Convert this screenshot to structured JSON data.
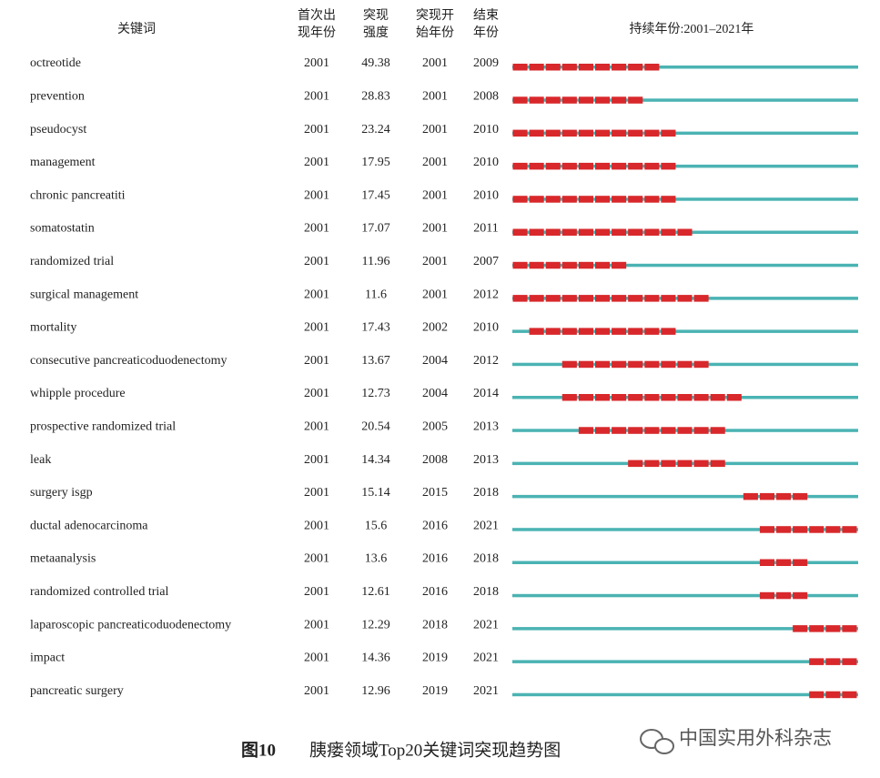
{
  "table": {
    "headers": [
      [
        "关键词"
      ],
      [
        "首次出",
        "现年份"
      ],
      [
        "突现",
        "强度"
      ],
      [
        "突现开",
        "始年份"
      ],
      [
        "结束",
        "年份"
      ],
      [
        "持续年份:2001–2021年"
      ]
    ],
    "rows": [
      [
        "octreotide",
        2001,
        49.38,
        2001,
        2009
      ],
      [
        "prevention",
        2001,
        28.83,
        2001,
        2008
      ],
      [
        "pseudocyst",
        2001,
        23.24,
        2001,
        2010
      ],
      [
        "management",
        2001,
        17.95,
        2001,
        2010
      ],
      [
        "chronic pancreatiti",
        2001,
        17.45,
        2001,
        2010
      ],
      [
        "somatostatin",
        2001,
        17.07,
        2001,
        2011
      ],
      [
        "randomized trial",
        2001,
        11.96,
        2001,
        2007
      ],
      [
        "surgical management",
        2001,
        11.6,
        2001,
        2012
      ],
      [
        "mortality",
        2001,
        17.43,
        2002,
        2010
      ],
      [
        "consecutive pancreaticoduodenectomy",
        2001,
        13.67,
        2004,
        2012
      ],
      [
        "whipple procedure",
        2001,
        12.73,
        2004,
        2014
      ],
      [
        "prospective randomized trial",
        2001,
        20.54,
        2005,
        2013
      ],
      [
        "leak",
        2001,
        14.34,
        2008,
        2013
      ],
      [
        "surgery isgp",
        2001,
        15.14,
        2015,
        2018
      ],
      [
        "ductal adenocarcinoma",
        2001,
        15.6,
        2016,
        2021
      ],
      [
        "metaanalysis",
        2001,
        13.6,
        2016,
        2018
      ],
      [
        "randomized controlled trial",
        2001,
        12.61,
        2016,
        2018
      ],
      [
        "laparoscopic pancreaticoduodenectomy",
        2001,
        12.29,
        2018,
        2021
      ],
      [
        "impact",
        2001,
        14.36,
        2019,
        2021
      ],
      [
        "pancreatic surgery",
        2001,
        12.96,
        2019,
        2021
      ]
    ]
  },
  "caption": {
    "label": "图10",
    "text": "胰瘘领域Top20关键词突现趋势图"
  },
  "watermark": "中国实用外科杂志"
}
